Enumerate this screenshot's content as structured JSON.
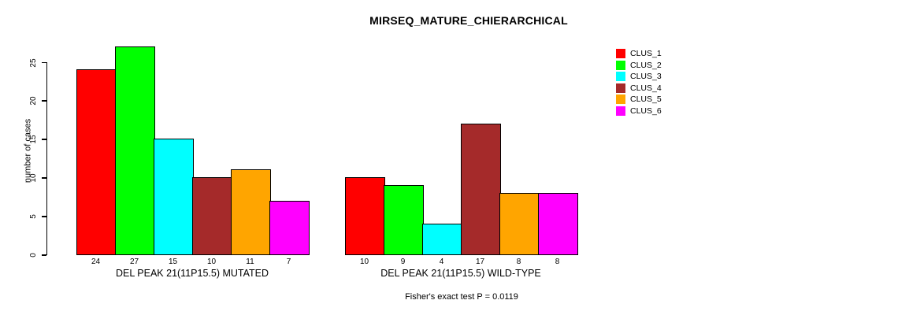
{
  "chart_data": {
    "type": "bar",
    "title": "MIRSEQ_MATURE_CHIERARCHICAL",
    "ylabel": "number of cases",
    "ylim": [
      0,
      27
    ],
    "yticks": [
      0,
      5,
      10,
      15,
      20,
      25
    ],
    "grid": false,
    "legend_position": "right-inside",
    "legend": [
      {
        "label": "CLUS_1",
        "color": "#FF0000"
      },
      {
        "label": "CLUS_2",
        "color": "#00FF00"
      },
      {
        "label": "CLUS_3",
        "color": "#00FFFF"
      },
      {
        "label": "CLUS_4",
        "color": "#A52A2A"
      },
      {
        "label": "CLUS_5",
        "color": "#FFA500"
      },
      {
        "label": "CLUS_6",
        "color": "#FF00FF"
      }
    ],
    "groups": [
      {
        "label": "DEL PEAK 21(11P15.5) MUTATED",
        "values": [
          24,
          27,
          15,
          10,
          11,
          7
        ]
      },
      {
        "label": "DEL PEAK 21(11P15.5) WILD-TYPE",
        "values": [
          10,
          9,
          4,
          17,
          8,
          8
        ]
      }
    ],
    "annotation": "Fisher's exact test P = 0.0119"
  }
}
